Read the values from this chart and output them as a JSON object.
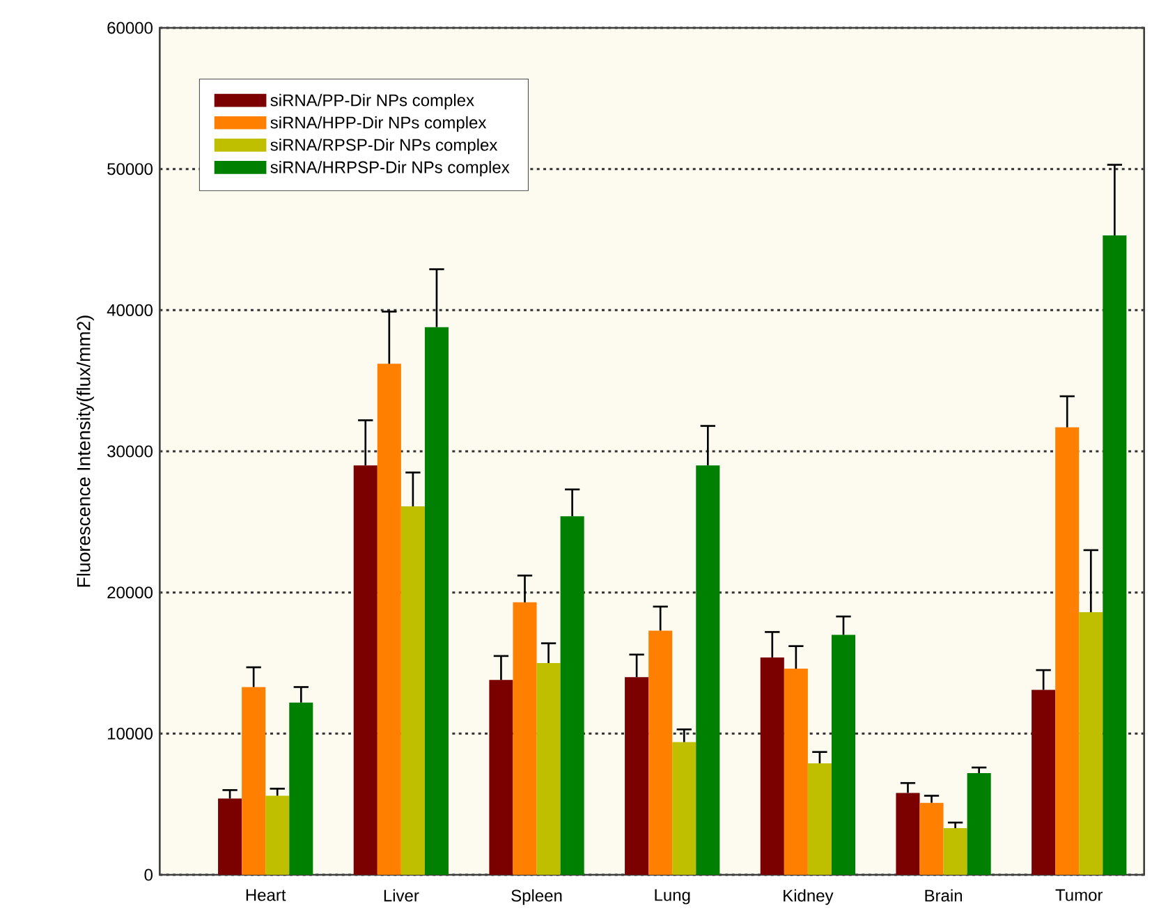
{
  "chart_data": {
    "type": "bar",
    "ylabel": "Fluorescence Intensity(flux/mm2)",
    "categories": [
      "Heart",
      "Liver",
      "Spleen",
      "Lung",
      "Kidney",
      "Brain",
      "Tumor"
    ],
    "series": [
      {
        "name": "siRNA/PP-Dir NPs complex",
        "color": "#7b0000",
        "values": [
          5400,
          29000,
          13800,
          14000,
          15400,
          5800,
          13100
        ],
        "errors": [
          [
            5400,
            6000
          ],
          [
            29000,
            32200
          ],
          [
            13800,
            15500
          ],
          [
            14000,
            15600
          ],
          [
            15400,
            17200
          ],
          [
            5800,
            6500
          ],
          [
            13100,
            14500
          ]
        ]
      },
      {
        "name": "siRNA/HPP-Dir NPs  complex",
        "color": "#ff8000",
        "values": [
          13300,
          36200,
          19300,
          17300,
          14600,
          5100,
          31700
        ],
        "errors": [
          [
            13300,
            14700
          ],
          [
            36200,
            39900
          ],
          [
            19300,
            21200
          ],
          [
            17300,
            19000
          ],
          [
            14600,
            16200
          ],
          [
            5100,
            5600
          ],
          [
            31700,
            33900
          ]
        ]
      },
      {
        "name": "siRNA/RPSP-Dir NPs complex",
        "color": "#bfbf00",
        "values": [
          5600,
          26100,
          15000,
          9400,
          7900,
          3300,
          18600
        ],
        "errors": [
          [
            5600,
            6100
          ],
          [
            26100,
            28500
          ],
          [
            15000,
            16400
          ],
          [
            9400,
            10300
          ],
          [
            7900,
            8700
          ],
          [
            3300,
            3700
          ],
          [
            18600,
            23000
          ]
        ]
      },
      {
        "name": "siRNA/HRPSP-Dir NPs complex",
        "color": "#008000",
        "values": [
          12200,
          38800,
          25400,
          29000,
          17000,
          7200,
          45300
        ],
        "errors": [
          [
            12200,
            13300
          ],
          [
            38800,
            42900
          ],
          [
            25400,
            27300
          ],
          [
            29000,
            31800
          ],
          [
            17000,
            18300
          ],
          [
            7200,
            7600
          ],
          [
            45300,
            50300
          ]
        ]
      }
    ],
    "ylim": [
      0,
      60000
    ],
    "yticks": [
      0,
      10000,
      20000,
      30000,
      40000,
      50000,
      60000
    ],
    "grid": "y",
    "legend": "top left"
  }
}
